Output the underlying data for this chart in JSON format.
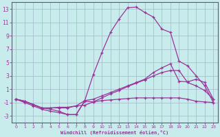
{
  "xlabel": "Windchill (Refroidissement éolien,°C)",
  "ylabel": "",
  "bg_color": "#c8ecec",
  "line_color": "#993399",
  "grid_color": "#a0b8c8",
  "x_min": 0,
  "x_max": 23,
  "y_min": -4,
  "y_max": 14,
  "yticks": [
    -3,
    -1,
    1,
    3,
    5,
    7,
    9,
    11,
    13
  ],
  "xticks": [
    0,
    1,
    2,
    3,
    4,
    5,
    6,
    7,
    8,
    9,
    10,
    11,
    12,
    13,
    14,
    15,
    16,
    17,
    18,
    19,
    20,
    21,
    22,
    23
  ],
  "lines": [
    [
      -0.5,
      -1.0,
      -1.5,
      -2.0,
      -2.3,
      -2.5,
      -2.8,
      -2.8,
      -0.8,
      -0.9,
      -0.7,
      -0.6,
      -0.5,
      -0.4,
      -0.3,
      -0.3,
      -0.3,
      -0.3,
      -0.3,
      -0.3,
      -0.5,
      -0.8,
      -0.9,
      -1.0
    ],
    [
      -0.5,
      -0.8,
      -1.3,
      -1.8,
      -1.8,
      -1.7,
      -1.7,
      -1.5,
      -1.4,
      -0.9,
      -0.3,
      0.3,
      0.8,
      1.4,
      1.9,
      2.4,
      3.0,
      3.5,
      3.8,
      3.8,
      2.0,
      1.5,
      0.8,
      -0.5
    ],
    [
      -0.5,
      -0.8,
      -1.3,
      -1.8,
      -1.8,
      -1.8,
      -1.8,
      -1.5,
      -0.7,
      -0.5,
      0.0,
      0.5,
      1.0,
      1.5,
      2.0,
      2.5,
      3.5,
      4.2,
      4.8,
      2.2,
      2.1,
      2.5,
      2.0,
      -0.5
    ],
    [
      -0.5,
      -0.8,
      -1.3,
      -1.8,
      -2.0,
      -2.3,
      -2.8,
      -2.8,
      -0.7,
      3.2,
      6.5,
      9.5,
      11.5,
      13.2,
      13.3,
      12.5,
      11.8,
      10.0,
      9.5,
      5.2,
      4.5,
      3.0,
      1.5,
      -1.0
    ]
  ]
}
